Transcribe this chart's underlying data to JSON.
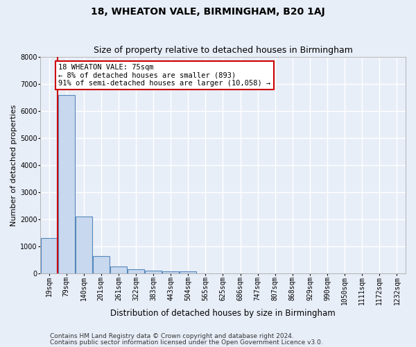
{
  "title1": "18, WHEATON VALE, BIRMINGHAM, B20 1AJ",
  "title2": "Size of property relative to detached houses in Birmingham",
  "xlabel": "Distribution of detached houses by size in Birmingham",
  "ylabel": "Number of detached properties",
  "categories": [
    "19sqm",
    "79sqm",
    "140sqm",
    "201sqm",
    "261sqm",
    "322sqm",
    "383sqm",
    "443sqm",
    "504sqm",
    "565sqm",
    "625sqm",
    "686sqm",
    "747sqm",
    "807sqm",
    "868sqm",
    "929sqm",
    "990sqm",
    "1050sqm",
    "1111sqm",
    "1172sqm",
    "1232sqm"
  ],
  "values": [
    1300,
    6600,
    2100,
    630,
    260,
    140,
    100,
    60,
    60,
    0,
    0,
    0,
    0,
    0,
    0,
    0,
    0,
    0,
    0,
    0,
    0
  ],
  "bar_color": "#c8d8ee",
  "bar_edge_color": "#5588bb",
  "highlight_color": "#cc0000",
  "ylim": [
    0,
    8000
  ],
  "annotation_line1": "18 WHEATON VALE: 75sqm",
  "annotation_line2": "← 8% of detached houses are smaller (893)",
  "annotation_line3": "91% of semi-detached houses are larger (10,058) →",
  "annotation_box_color": "#ffffff",
  "annotation_box_edge": "#cc0000",
  "footer1": "Contains HM Land Registry data © Crown copyright and database right 2024.",
  "footer2": "Contains public sector information licensed under the Open Government Licence v3.0.",
  "background_color": "#e8eef8",
  "grid_color": "#ffffff",
  "title1_fontsize": 10,
  "title2_fontsize": 9,
  "xlabel_fontsize": 8.5,
  "ylabel_fontsize": 8,
  "tick_fontsize": 7,
  "annotation_fontsize": 7.5,
  "footer_fontsize": 6.5
}
